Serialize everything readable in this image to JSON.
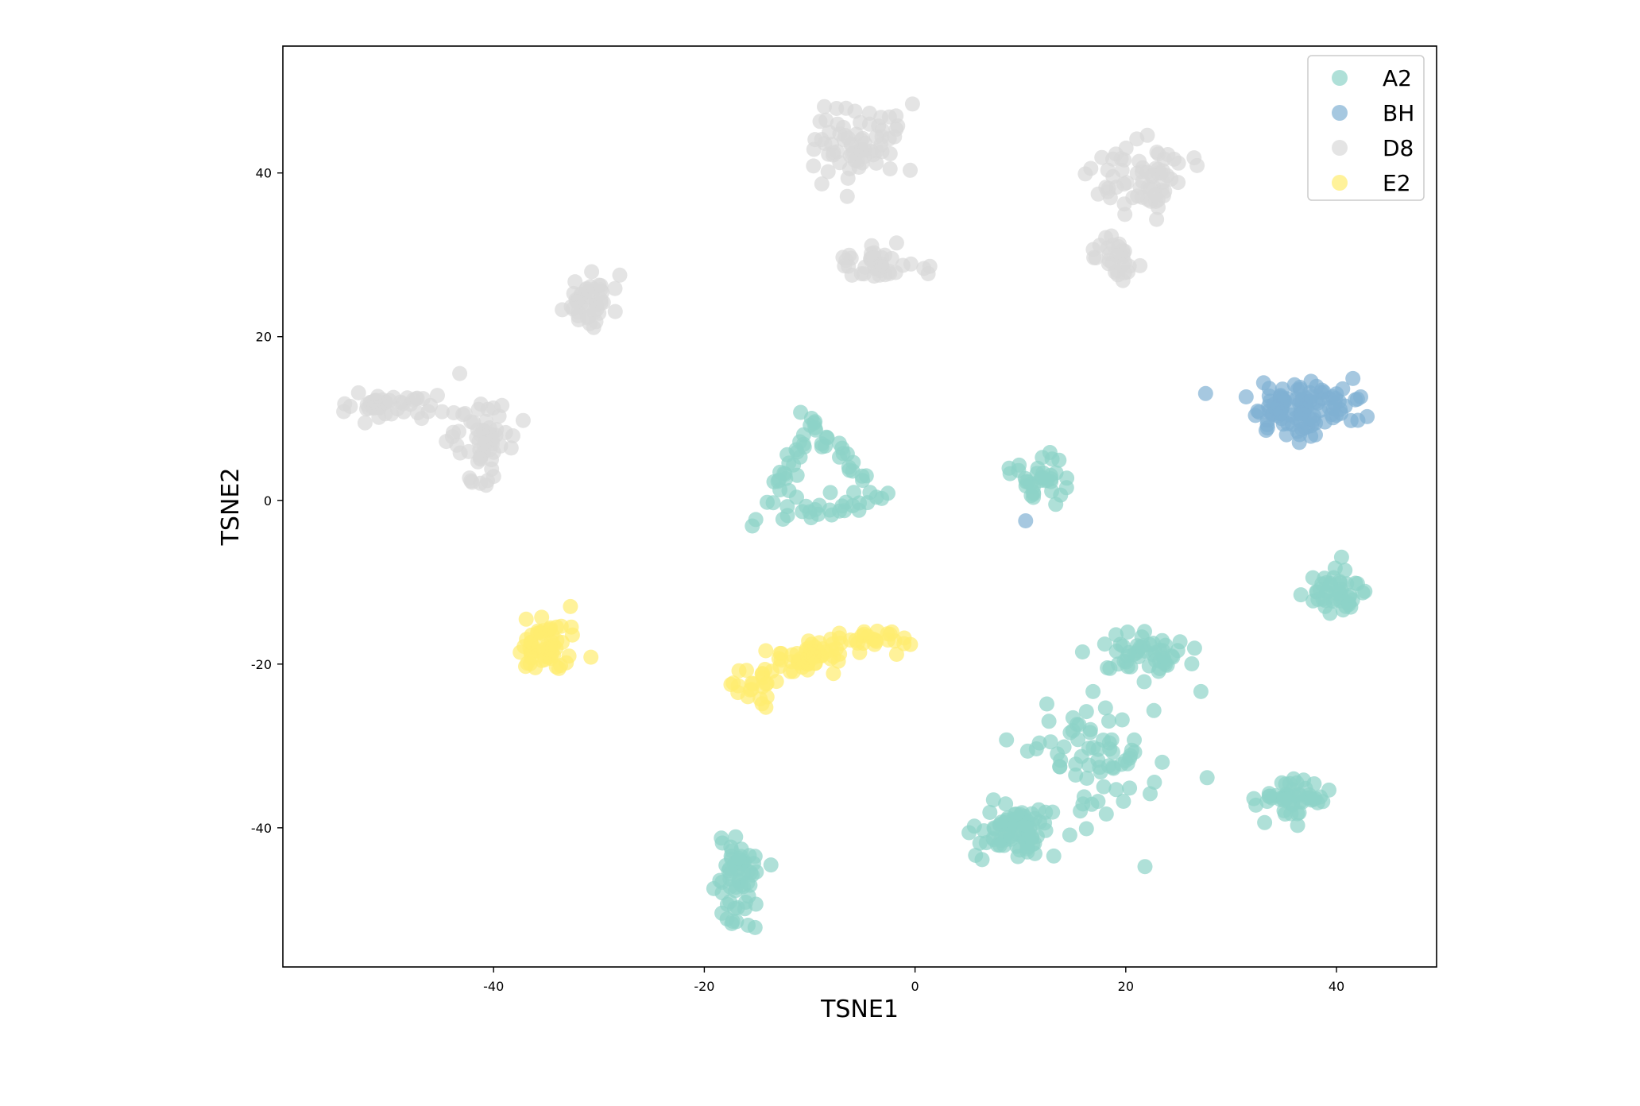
{
  "chart_data": {
    "type": "scatter",
    "title": "",
    "xlabel": "TSNE1",
    "ylabel": "TSNE2",
    "xlim": [
      -60,
      49.5
    ],
    "ylim": [
      -57,
      55.5
    ],
    "xticks": [
      -40,
      -20,
      0,
      20,
      40
    ],
    "yticks": [
      -40,
      -20,
      0,
      20,
      40
    ],
    "xtick_labels": [
      "-40",
      "-20",
      "0",
      "20",
      "40"
    ],
    "ytick_labels": [
      "-40",
      "-20",
      "0",
      "20",
      "40"
    ],
    "grid": false,
    "legend_position": "top-right",
    "marker_alpha": 0.7,
    "series": [
      {
        "name": "A2",
        "color": "#8dd3c7",
        "clusters": [
          {
            "center": [
              -10,
              3.5
            ],
            "spread": [
              4.5,
              4.5
            ],
            "count": 75,
            "shape": "triangle",
            "vertices": [
              [
                -15,
                -2.5
              ],
              [
                -9.5,
                9.5
              ],
              [
                -3.5,
                0.5
              ]
            ]
          },
          {
            "center": [
              11.5,
              2.5
            ],
            "spread": [
              1.6,
              2.0
            ],
            "count": 35
          },
          {
            "center": [
              40,
              -11.5
            ],
            "spread": [
              2.0,
              2.3
            ],
            "count": 45
          },
          {
            "center": [
              21.5,
              -19
            ],
            "spread": [
              3.0,
              1.6
            ],
            "count": 50
          },
          {
            "center": [
              17,
              -31
            ],
            "spread": [
              4.8,
              5.0
            ],
            "count": 70
          },
          {
            "center": [
              10,
              -40
            ],
            "spread": [
              2.5,
              2.2
            ],
            "count": 80
          },
          {
            "center": [
              36,
              -36.5
            ],
            "spread": [
              2.0,
              1.6
            ],
            "count": 50
          },
          {
            "center": [
              -17,
              -46
            ],
            "spread": [
              1.3,
              3.4
            ],
            "count": 60
          }
        ]
      },
      {
        "name": "BH",
        "color": "#80b1d3",
        "clusters": [
          {
            "center": [
              37,
              11
            ],
            "spread": [
              4.0,
              2.3
            ],
            "count": 110
          },
          {
            "center": [
              10.5,
              -2.5
            ],
            "spread": [
              0.3,
              0.3
            ],
            "count": 1
          }
        ]
      },
      {
        "name": "D8",
        "color": "#d9d9d9",
        "clusters": [
          {
            "center": [
              -51,
              11.5
            ],
            "spread": [
              3.0,
              0.9
            ],
            "count": 45
          },
          {
            "center": [
              -41,
              7.5
            ],
            "spread": [
              2.2,
              3.4
            ],
            "count": 60
          },
          {
            "center": [
              -31,
              24.5
            ],
            "spread": [
              1.8,
              2.3
            ],
            "count": 45
          },
          {
            "center": [
              -5.5,
              43.5
            ],
            "spread": [
              2.8,
              3.2
            ],
            "count": 70
          },
          {
            "center": [
              -3.5,
              29
            ],
            "spread": [
              2.3,
              1.3
            ],
            "count": 40
          },
          {
            "center": [
              21.5,
              39.5
            ],
            "spread": [
              2.8,
              2.6
            ],
            "count": 65
          },
          {
            "center": [
              19,
              29.5
            ],
            "spread": [
              1.5,
              2.2
            ],
            "count": 30
          }
        ]
      },
      {
        "name": "E2",
        "color": "#ffed6f",
        "clusters": [
          {
            "center": [
              -35,
              -17.5
            ],
            "spread": [
              2.2,
              2.4
            ],
            "count": 60
          },
          {
            "center": [
              -10,
              -19
            ],
            "spread": [
              2.6,
              1.5
            ],
            "count": 55
          },
          {
            "center": [
              -4,
              -17
            ],
            "spread": [
              1.6,
              1.2
            ],
            "count": 25
          },
          {
            "center": [
              -15,
              -22.5
            ],
            "spread": [
              1.4,
              2.4
            ],
            "count": 25
          }
        ]
      }
    ]
  }
}
